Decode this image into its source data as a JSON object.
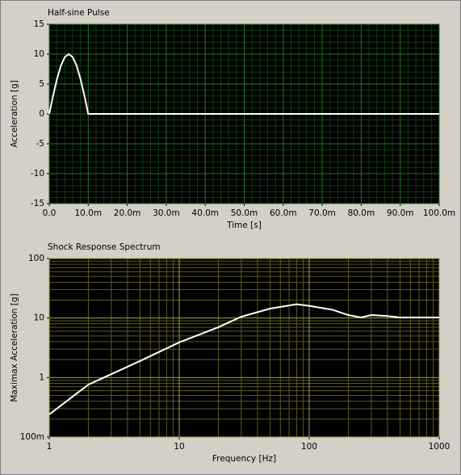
{
  "chart_data": [
    {
      "type": "line",
      "title": "Half-sine Pulse",
      "x_label": "Time [s]",
      "y_label": "Acceleration [g]",
      "x": [
        0,
        0.001,
        0.002,
        0.003,
        0.004,
        0.005,
        0.006,
        0.007,
        0.008,
        0.009,
        0.01,
        0.1
      ],
      "values": [
        0,
        3.09,
        5.88,
        8.09,
        9.51,
        10,
        9.51,
        8.09,
        5.88,
        3.09,
        0,
        0
      ],
      "color": "#ffffff",
      "xlim": [
        0,
        0.1
      ],
      "xticks": [
        {
          "value": 0,
          "label": "0.0"
        },
        {
          "value": 0.01,
          "label": "10.0m"
        },
        {
          "value": 0.02,
          "label": "20.0m"
        },
        {
          "value": 0.03,
          "label": "30.0m"
        },
        {
          "value": 0.04,
          "label": "40.0m"
        },
        {
          "value": 0.05,
          "label": "50.0m"
        },
        {
          "value": 0.06,
          "label": "60.0m"
        },
        {
          "value": 0.07,
          "label": "70.0m"
        },
        {
          "value": 0.08,
          "label": "80.0m"
        },
        {
          "value": 0.09,
          "label": "90.0m"
        },
        {
          "value": 0.1,
          "label": "100.0m"
        }
      ],
      "ylim": [
        -15,
        15
      ],
      "yticks": [
        15,
        10,
        5,
        0,
        -5,
        -10,
        -15
      ],
      "grid": true,
      "grid_color": "#1e7a1e",
      "minor_grid_color": "#0f3d0f",
      "xscale": "linear",
      "yscale": "linear"
    },
    {
      "type": "line",
      "title": "Shock Response Spectrum",
      "x_label": "Frequency [Hz]",
      "y_label": "Maximax Acceleration [g]",
      "x": [
        1,
        2,
        5,
        10,
        20,
        30,
        50,
        80,
        100,
        150,
        200,
        250,
        300,
        400,
        500,
        1000
      ],
      "values": [
        0.24,
        0.76,
        1.9,
        3.9,
        7,
        10.5,
        14.4,
        17,
        16,
        13.8,
        11.2,
        10.2,
        11.2,
        10.8,
        10.2,
        10.2
      ],
      "color": "#ffffff",
      "xlim": [
        1,
        1000
      ],
      "xticks": [
        1,
        10,
        100,
        1000
      ],
      "ylim": [
        0.1,
        100
      ],
      "yticks": [
        {
          "value": 0.1,
          "label": "100m"
        },
        1,
        10,
        100
      ],
      "grid": true,
      "grid_color": "#a8a23a",
      "minor_grid_color": "#5c5a20",
      "xscale": "log",
      "yscale": "log"
    }
  ]
}
